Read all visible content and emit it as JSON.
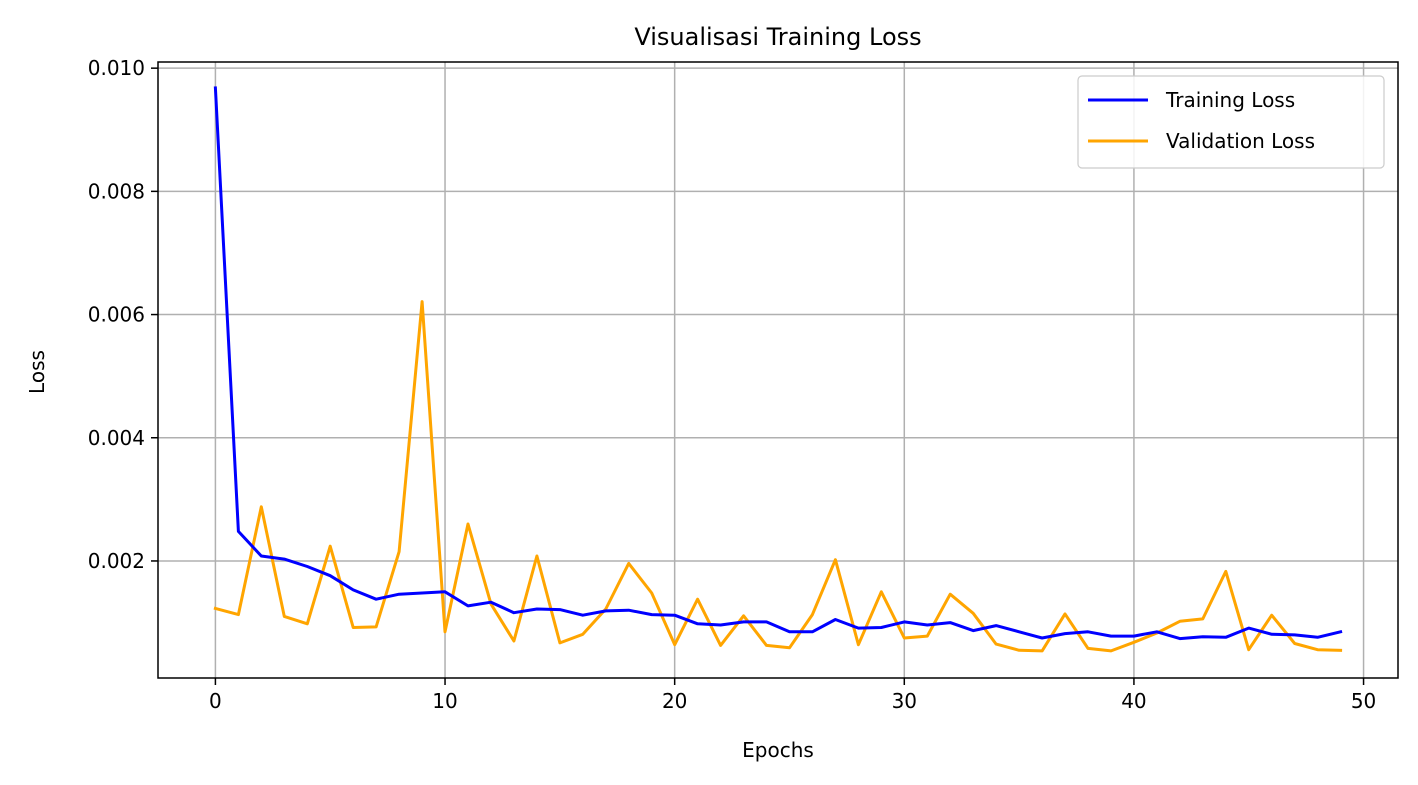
{
  "chart_data": {
    "type": "line",
    "title": "Visualisasi Training Loss",
    "xlabel": "Epochs",
    "ylabel": "Loss",
    "xlim": [
      -2.5,
      51.5
    ],
    "ylim": [
      0.0001,
      0.0101
    ],
    "xticks": [
      0,
      10,
      20,
      30,
      40,
      50
    ],
    "xtick_labels": [
      "0",
      "10",
      "20",
      "30",
      "40",
      "50"
    ],
    "yticks": [
      0.002,
      0.004,
      0.006,
      0.008,
      0.01
    ],
    "ytick_labels": [
      "0.002",
      "0.004",
      "0.006",
      "0.008",
      "0.010"
    ],
    "grid": true,
    "legend_position": "top-right",
    "x": [
      0,
      1,
      2,
      3,
      4,
      5,
      6,
      7,
      8,
      9,
      10,
      11,
      12,
      13,
      14,
      15,
      16,
      17,
      18,
      19,
      20,
      21,
      22,
      23,
      24,
      25,
      26,
      27,
      28,
      29,
      30,
      31,
      32,
      33,
      34,
      35,
      36,
      37,
      38,
      39,
      40,
      41,
      42,
      43,
      44,
      45,
      46,
      47,
      48,
      49
    ],
    "series": [
      {
        "name": "Training Loss",
        "color": "#0000ff",
        "values": [
          0.00968,
          0.00248,
          0.00208,
          0.00203,
          0.00191,
          0.00176,
          0.00153,
          0.00138,
          0.00146,
          0.00148,
          0.0015,
          0.00127,
          0.00133,
          0.00116,
          0.00122,
          0.00121,
          0.00112,
          0.00119,
          0.0012,
          0.00113,
          0.00112,
          0.00098,
          0.00096,
          0.00101,
          0.00101,
          0.00085,
          0.00085,
          0.00105,
          0.00091,
          0.00092,
          0.00101,
          0.00096,
          0.001,
          0.00087,
          0.00095,
          0.00085,
          0.00075,
          0.00082,
          0.00085,
          0.00078,
          0.00078,
          0.00085,
          0.00074,
          0.00077,
          0.00076,
          0.00091,
          0.00081,
          0.0008,
          0.00076,
          0.00085
        ]
      },
      {
        "name": "Validation Loss",
        "color": "#ffa500",
        "values": [
          0.00123,
          0.00113,
          0.00288,
          0.0011,
          0.00098,
          0.00224,
          0.00092,
          0.00093,
          0.00215,
          0.00621,
          0.00085,
          0.0026,
          0.0013,
          0.0007,
          0.00208,
          0.00067,
          0.00081,
          0.00122,
          0.00196,
          0.00148,
          0.00064,
          0.00138,
          0.00063,
          0.00111,
          0.00063,
          0.00059,
          0.00113,
          0.00202,
          0.00064,
          0.0015,
          0.00075,
          0.00078,
          0.00146,
          0.00115,
          0.00065,
          0.00055,
          0.00054,
          0.00114,
          0.00058,
          0.00054,
          0.00068,
          0.00083,
          0.00102,
          0.00106,
          0.00183,
          0.00056,
          0.00112,
          0.00066,
          0.00056,
          0.00055
        ]
      }
    ]
  }
}
